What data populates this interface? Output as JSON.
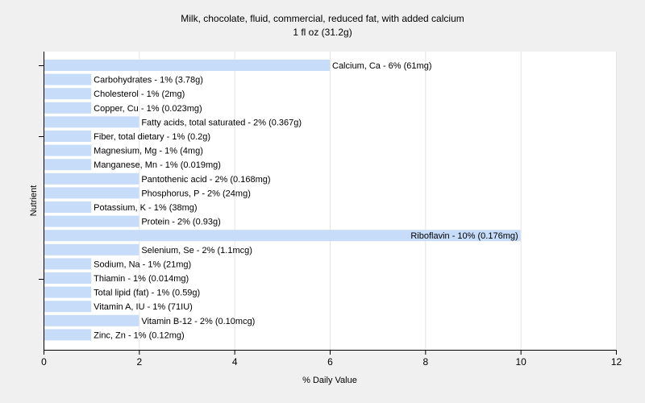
{
  "chart_data": {
    "type": "bar",
    "orientation": "horizontal",
    "title": "Milk, chocolate, fluid, commercial, reduced fat, with added calcium",
    "subtitle": "1 fl oz (31.2g)",
    "xlabel": "% Daily Value",
    "ylabel": "Nutrient",
    "xlim": [
      0,
      12
    ],
    "xticks": [
      0,
      2,
      4,
      6,
      8,
      10,
      12
    ],
    "grid": "vertical",
    "bar_color": "#c6dcf9",
    "categories": [
      "Calcium, Ca",
      "Carbohydrates",
      "Cholesterol",
      "Copper, Cu",
      "Fatty acids, total saturated",
      "Fiber, total dietary",
      "Magnesium, Mg",
      "Manganese, Mn",
      "Pantothenic acid",
      "Phosphorus, P",
      "Potassium, K",
      "Protein",
      "Riboflavin",
      "Selenium, Se",
      "Sodium, Na",
      "Thiamin",
      "Total lipid (fat)",
      "Vitamin A, IU",
      "Vitamin B-12",
      "Zinc, Zn"
    ],
    "values": [
      6,
      1,
      1,
      1,
      2,
      1,
      1,
      1,
      2,
      2,
      1,
      2,
      10,
      2,
      1,
      1,
      1,
      1,
      2,
      1
    ],
    "labels": [
      "Calcium, Ca - 6% (61mg)",
      "Carbohydrates - 1% (3.78g)",
      "Cholesterol - 1% (2mg)",
      "Copper, Cu - 1% (0.023mg)",
      "Fatty acids, total saturated - 2% (0.367g)",
      "Fiber, total dietary - 1% (0.2g)",
      "Magnesium, Mg - 1% (4mg)",
      "Manganese, Mn - 1% (0.019mg)",
      "Pantothenic acid - 2% (0.168mg)",
      "Phosphorus, P - 2% (24mg)",
      "Potassium, K - 1% (38mg)",
      "Protein - 2% (0.93g)",
      "Riboflavin - 10% (0.176mg)",
      "Selenium, Se - 2% (1.1mcg)",
      "Sodium, Na - 1% (21mg)",
      "Thiamin - 1% (0.014mg)",
      "Total lipid (fat) - 1% (0.59g)",
      "Vitamin A, IU - 1% (71IU)",
      "Vitamin B-12 - 2% (0.10mcg)",
      "Zinc, Zn - 1% (0.12mg)"
    ]
  }
}
